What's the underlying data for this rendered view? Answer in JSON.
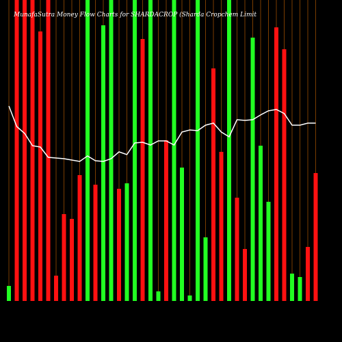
{
  "chart_data": {
    "type": "bar",
    "title": "MunafaSutra Money Flow Charts for SHARDACROP (Sharda Cropchem Limit",
    "values": [
      22,
      440,
      440,
      440,
      394,
      440,
      37,
      127,
      120,
      184,
      440,
      170,
      403,
      440,
      164,
      172,
      440,
      383,
      440,
      14,
      235,
      440,
      195,
      8,
      440,
      93,
      340,
      218,
      440,
      151,
      76,
      385,
      227,
      145,
      400,
      368,
      40,
      35,
      79,
      187
    ],
    "bar_colors": [
      "#22ff22",
      "#ff1111",
      "#ff1111",
      "#ff1111",
      "#ff1111",
      "#ff1111",
      "#ff1111",
      "#ff1111",
      "#ff1111",
      "#ff1111",
      "#22ff22",
      "#ff1111",
      "#22ff22",
      "#22ff22",
      "#ff1111",
      "#22ff22",
      "#22ff22",
      "#ff1111",
      "#22ff22",
      "#22ff22",
      "#ff1111",
      "#22ff22",
      "#22ff22",
      "#22ff22",
      "#22ff22",
      "#22ff22",
      "#ff1111",
      "#ff1111",
      "#22ff22",
      "#ff1111",
      "#ff1111",
      "#22ff22",
      "#22ff22",
      "#22ff22",
      "#ff1111",
      "#ff1111",
      "#22ff22",
      "#22ff22",
      "#ff1111",
      "#ff1111"
    ],
    "line_values": [
      285,
      255,
      245,
      227,
      225,
      210,
      209,
      208,
      206,
      204,
      212,
      205,
      204,
      208,
      218,
      214,
      231,
      232,
      228,
      234,
      234,
      228,
      247,
      250,
      249,
      257,
      260,
      247,
      240,
      265,
      264,
      265,
      272,
      278,
      280,
      274,
      257,
      257,
      260,
      260
    ],
    "line_color": "#ffffff",
    "ylim": [
      0,
      440
    ]
  }
}
